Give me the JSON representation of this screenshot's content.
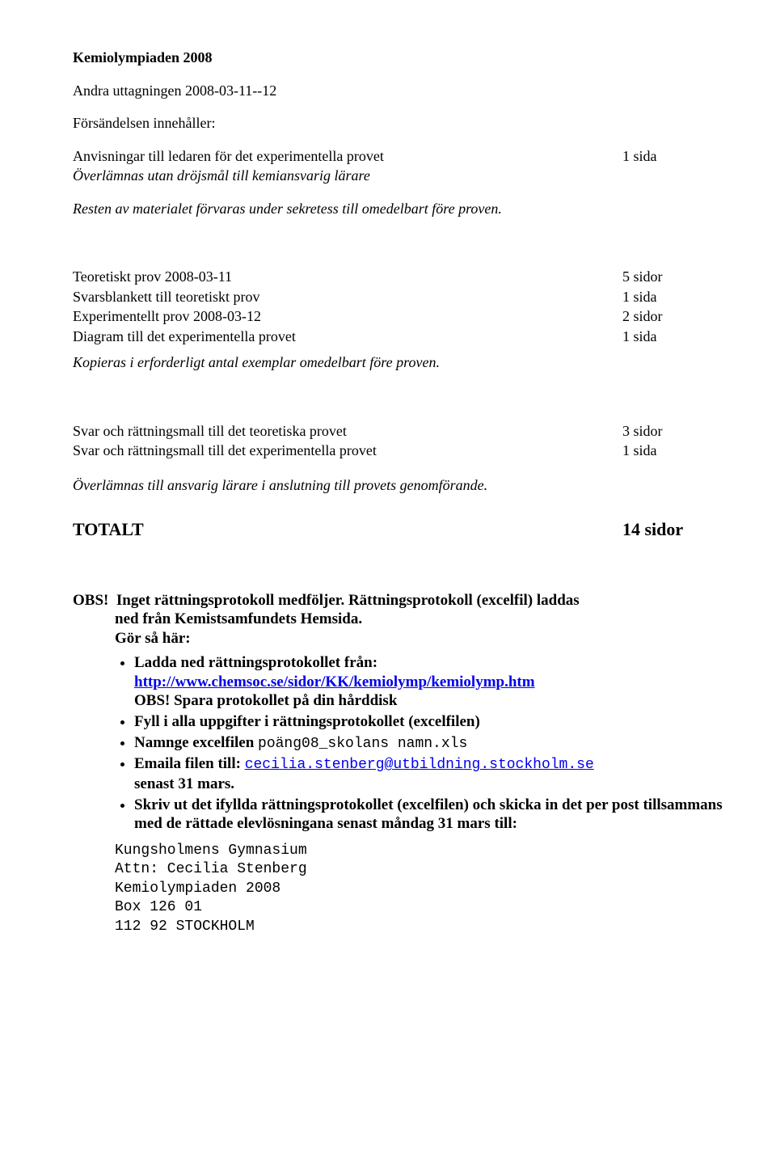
{
  "title": "Kemiolympiaden 2008",
  "subtitle": "Andra uttagningen 2008-03-11--12",
  "contains_label": "Försändelsen innehåller:",
  "section1": {
    "row1_left": "Anvisningar till ledaren för det experimentella provet",
    "row1_right": "1 sida",
    "italic1": "Överlämnas utan dröjsmål till kemiansvarig lärare",
    "italic2": "Resten av materialet förvaras under sekretess till omedelbart före proven."
  },
  "section2": {
    "r1l": "Teoretiskt prov 2008-03-11",
    "r1r": "5 sidor",
    "r2l": "Svarsblankett till teoretiskt prov",
    "r2r": "1 sida",
    "r3l": "Experimentellt prov 2008-03-12",
    "r3r": "2 sidor",
    "r4l": "Diagram till det experimentella provet",
    "r4r": "1 sida",
    "italic": "Kopieras i erforderligt antal exemplar omedelbart före proven."
  },
  "section3": {
    "r1l": "Svar och rättningsmall till det teoretiska provet",
    "r1r": "3 sidor",
    "r2l": "Svar och rättningsmall till det experimentella provet",
    "r2r": "1 sida",
    "italic": "Överlämnas till ansvarig lärare i anslutning till provets genomförande."
  },
  "totalt": {
    "label": "TOTALT",
    "value": "14 sidor"
  },
  "obs": {
    "prefix": "OBS!",
    "line1_part1": "Inget rättningsprotokoll medföljer. Rättningsprotokoll (excelfil) laddas",
    "line1_part2": "ned från Kemistsamfundets Hemsida.",
    "gor": "Gör så här:",
    "b1a": "Ladda ned rättningsprotokollet från:",
    "b1_link": "http://www.chemsoc.se/sidor/KK/kemiolymp/kemiolymp.htm",
    "b1c": "OBS! Spara protokollet på din hårddisk",
    "b2": "Fyll i alla uppgifter i rättningsprotokollet (excelfilen)",
    "b3a": "Namnge excelfilen ",
    "b3b": "poäng08_skolans namn.xls",
    "b4a": "Emaila filen till: ",
    "b4_link": "cecilia.stenberg@utbildning.stockholm.se",
    "b4c": "senast 31 mars.",
    "b5": "Skriv ut det ifyllda rättningsprotokollet (excelfilen) och skicka in det per post tillsammans med de rättade elevlösningana senast måndag 31 mars till:"
  },
  "address": {
    "l1": "Kungsholmens Gymnasium",
    "l2": "Attn: Cecilia Stenberg",
    "l3": "Kemiolympiaden 2008",
    "l4": "Box 126 01",
    "l5": "112 92 STOCKHOLM"
  }
}
